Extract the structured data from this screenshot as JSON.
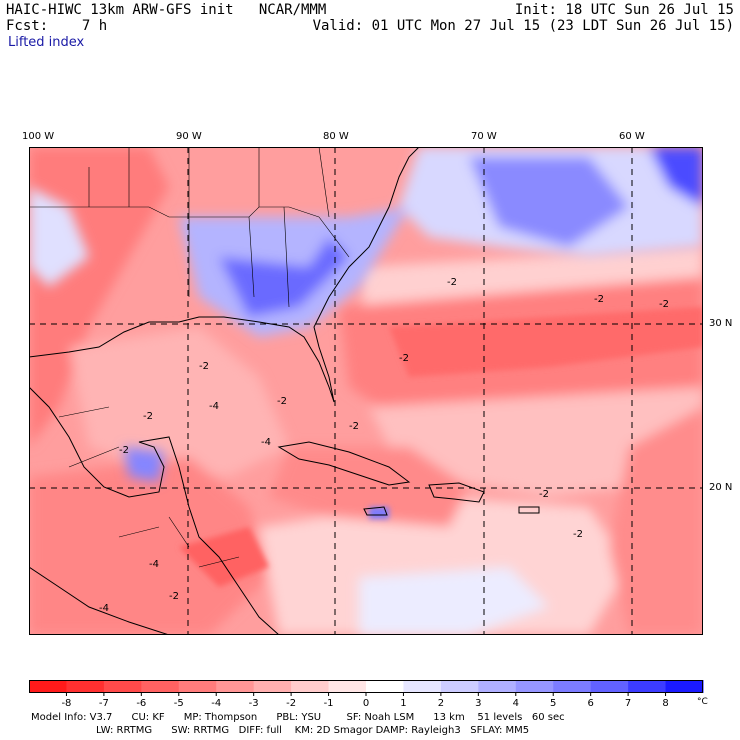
{
  "header": {
    "model_line": "HAIC-HIWC 13km ARW-GFS init   NCAR/MMM",
    "init_line": "Init: 18 UTC Sun 26 Jul 15",
    "fcst_line": "Fcst:    7 h",
    "valid_line": "Valid: 01 UTC Mon 27 Jul 15 (23 LDT Sun 26 Jul 15)",
    "field_name": "Lifted index"
  },
  "map": {
    "lon_labels": [
      "100 W",
      "90 W",
      "80 W",
      "70 W",
      "60 W"
    ],
    "lat_labels": [
      "30 N",
      "20 N"
    ],
    "contour_labels": [
      "-2",
      "-2",
      "-2",
      "-2",
      "-2",
      "-2",
      "-2",
      "-2",
      "-2",
      "-2",
      "-2",
      "-2",
      "-4",
      "-4",
      "-4",
      "-4"
    ]
  },
  "colorbar": {
    "tick_labels": [
      "-8",
      "-7",
      "-6",
      "-5",
      "-4",
      "-3",
      "-2",
      "-1",
      "0",
      "1",
      "2",
      "3",
      "4",
      "5",
      "6",
      "7",
      "8"
    ],
    "unit": "°C",
    "colors": [
      "#ff1a1a",
      "#ff3030",
      "#ff4a4a",
      "#ff6262",
      "#ff7c7c",
      "#ff9696",
      "#ffb0b0",
      "#ffcccc",
      "#ffe6e6",
      "#ffffff",
      "#e6e6ff",
      "#ccccff",
      "#b0b0ff",
      "#9696ff",
      "#7c7cff",
      "#6262ff",
      "#3c3cff",
      "#1a1aff"
    ]
  },
  "footer": {
    "line1": "Model Info: V3.7      CU: KF      MP: Thompson      PBL: YSU        SF: Noah LSM      13 km    51 levels   60 sec",
    "line2": "LW: RRTMG      SW: RRTMG   DIFF: full    KM: 2D Smagor DAMP: Rayleigh3   SFLAY: MM5"
  }
}
